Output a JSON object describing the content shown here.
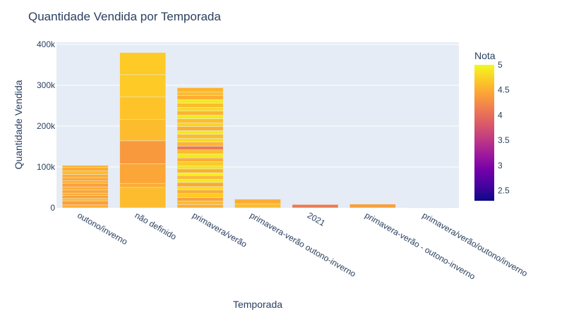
{
  "chart_data": {
    "type": "bar",
    "title": "Quantidade Vendida por Temporada",
    "xlabel": "Temporada",
    "ylabel": "Quantidade Vendida",
    "ylim": [
      0,
      400000
    ],
    "yticks": [
      0,
      100000,
      200000,
      300000,
      400000
    ],
    "ytick_labels": [
      "0",
      "100k",
      "200k",
      "300k",
      "400k"
    ],
    "categories": [
      "outono/inverno",
      "não definido",
      "primavera/verão",
      "primavera-verão outono-inverno",
      "2021",
      "primavera-verão - outono-inverno",
      "primavera/verão/outono/inverno"
    ],
    "colorbar": {
      "title": "Nota",
      "range": [
        2.3,
        5
      ],
      "ticks": [
        2.5,
        3,
        3.5,
        4,
        4.5,
        5
      ],
      "tick_labels": [
        "2.5",
        "3",
        "3.5",
        "4",
        "4.5",
        "5"
      ]
    },
    "colorscale": [
      "#0d0887",
      "#46039f",
      "#7201a8",
      "#9c179e",
      "#bd3786",
      "#d8576b",
      "#ed7953",
      "#fb9f3a",
      "#fdca26",
      "#f0f921"
    ],
    "background_color": "#e5ecf6",
    "bar_colors": [
      "#fdca26",
      "#fb9f3a",
      "#fca636",
      "#f9e221",
      "#ed7953",
      "#e8d7d3",
      "#f8dcc8"
    ],
    "segments": [
      [
        [
          7000,
          4.5
        ],
        [
          10000,
          4.4
        ],
        [
          6000,
          4.6
        ],
        [
          7000,
          4.4
        ],
        [
          6000,
          4.5
        ],
        [
          8000,
          4.45
        ],
        [
          7000,
          4.5
        ],
        [
          9000,
          4.4
        ],
        [
          6000,
          4.55
        ],
        [
          8000,
          4.45
        ],
        [
          8000,
          4.5
        ],
        [
          8000,
          4.6
        ],
        [
          9000,
          4.5
        ],
        [
          5000,
          4.55
        ]
      ],
      [
        [
          50000,
          4.6
        ],
        [
          10000,
          4.5
        ],
        [
          48000,
          4.45
        ],
        [
          56000,
          4.35
        ],
        [
          52000,
          4.6
        ],
        [
          55000,
          4.65
        ],
        [
          55000,
          4.7
        ],
        [
          54000,
          4.7
        ]
      ],
      [
        [
          8000,
          4.5
        ],
        [
          9000,
          4.6
        ],
        [
          8000,
          4.4
        ],
        [
          10000,
          4.7
        ],
        [
          9000,
          4.5
        ],
        [
          8000,
          4.8
        ],
        [
          10000,
          4.45
        ],
        [
          8000,
          4.9
        ],
        [
          9000,
          4.6
        ],
        [
          7000,
          4.95
        ],
        [
          9000,
          4.5
        ],
        [
          8000,
          4.85
        ],
        [
          10000,
          4.7
        ],
        [
          9000,
          4.5
        ],
        [
          10000,
          4.9
        ],
        [
          10000,
          4.6
        ],
        [
          9000,
          4.1
        ],
        [
          10000,
          4.55
        ],
        [
          9000,
          4.8
        ],
        [
          10000,
          4.6
        ],
        [
          9000,
          4.9
        ],
        [
          10000,
          4.5
        ],
        [
          9000,
          4.75
        ],
        [
          10000,
          4.6
        ],
        [
          9000,
          4.9
        ],
        [
          10000,
          4.55
        ],
        [
          9000,
          4.8
        ],
        [
          10000,
          4.6
        ],
        [
          9000,
          4.9
        ],
        [
          10000,
          4.5
        ],
        [
          9000,
          4.6
        ],
        [
          10000,
          4.55
        ]
      ],
      [
        [
          10000,
          4.6
        ],
        [
          11000,
          4.5
        ]
      ],
      [
        [
          8000,
          4.0
        ]
      ],
      [
        [
          9000,
          4.4
        ]
      ],
      [
        [
          1500,
          4.3
        ]
      ]
    ]
  }
}
